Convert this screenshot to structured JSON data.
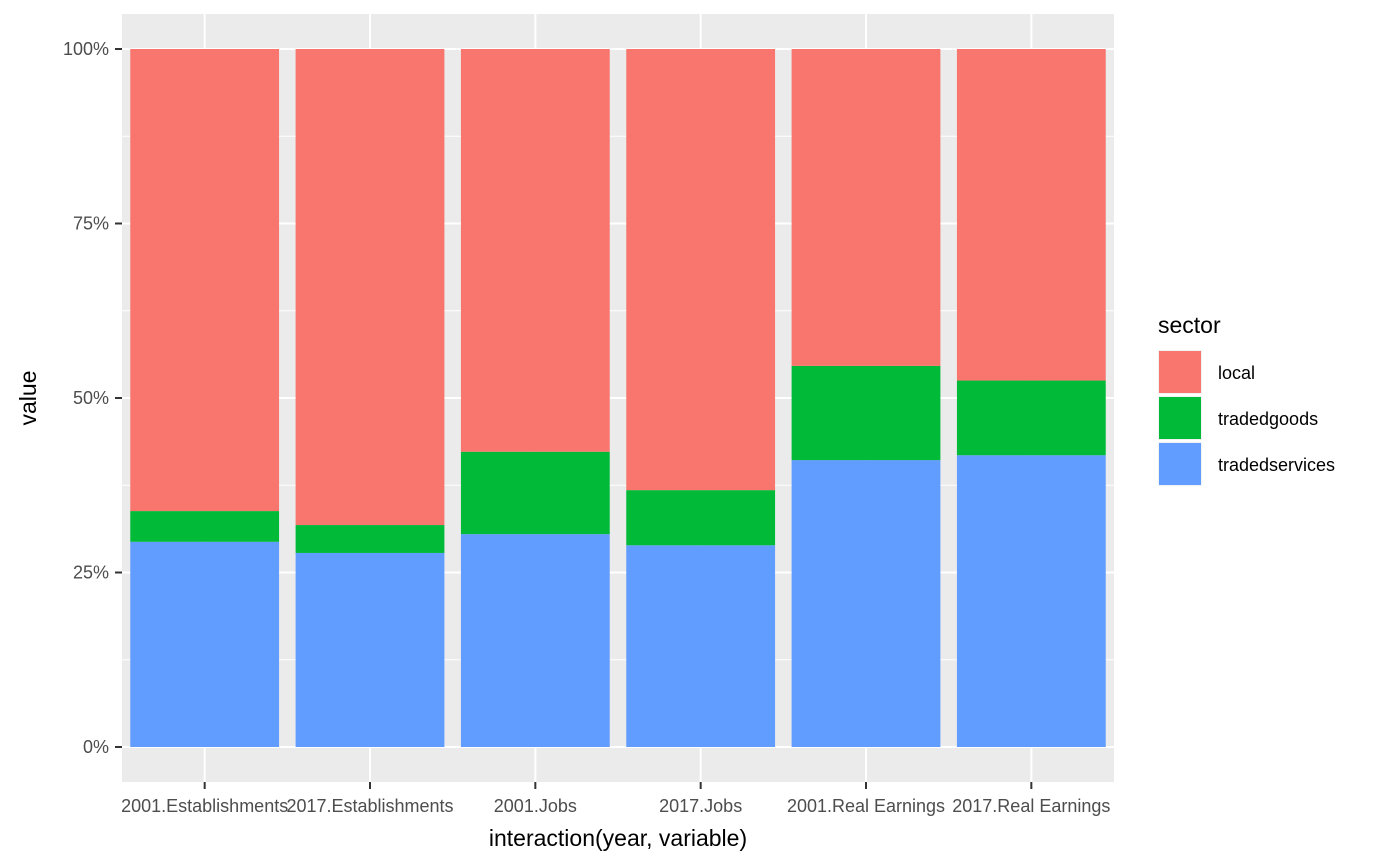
{
  "chart_data": {
    "type": "bar",
    "stacked": true,
    "title": "",
    "xlabel": "interaction(year, variable)",
    "ylabel": "value",
    "ylim": [
      0,
      1
    ],
    "y_ticks": [
      {
        "value": 0,
        "label": "0%"
      },
      {
        "value": 0.25,
        "label": "25%"
      },
      {
        "value": 0.5,
        "label": "50%"
      },
      {
        "value": 0.75,
        "label": "75%"
      },
      {
        "value": 1,
        "label": "100%"
      }
    ],
    "categories": [
      "2001.Establishments",
      "2017.Establishments",
      "2001.Jobs",
      "2017.Jobs",
      "2001.Real Earnings",
      "2017.Real Earnings"
    ],
    "series": [
      {
        "name": "tradedservices",
        "color": "#619CFF",
        "values": [
          0.294,
          0.278,
          0.305,
          0.289,
          0.411,
          0.418
        ]
      },
      {
        "name": "tradedgoods",
        "color": "#00BA38",
        "values": [
          0.044,
          0.04,
          0.118,
          0.079,
          0.135,
          0.107
        ]
      },
      {
        "name": "local",
        "color": "#F8766D",
        "values": [
          0.662,
          0.682,
          0.577,
          0.632,
          0.454,
          0.475
        ]
      }
    ],
    "grid": true,
    "legend": {
      "title": "sector",
      "placement": "right",
      "entries": [
        {
          "label": "local",
          "color": "#F8766D"
        },
        {
          "label": "tradedgoods",
          "color": "#00BA38"
        },
        {
          "label": "tradedservices",
          "color": "#619CFF"
        }
      ]
    }
  }
}
